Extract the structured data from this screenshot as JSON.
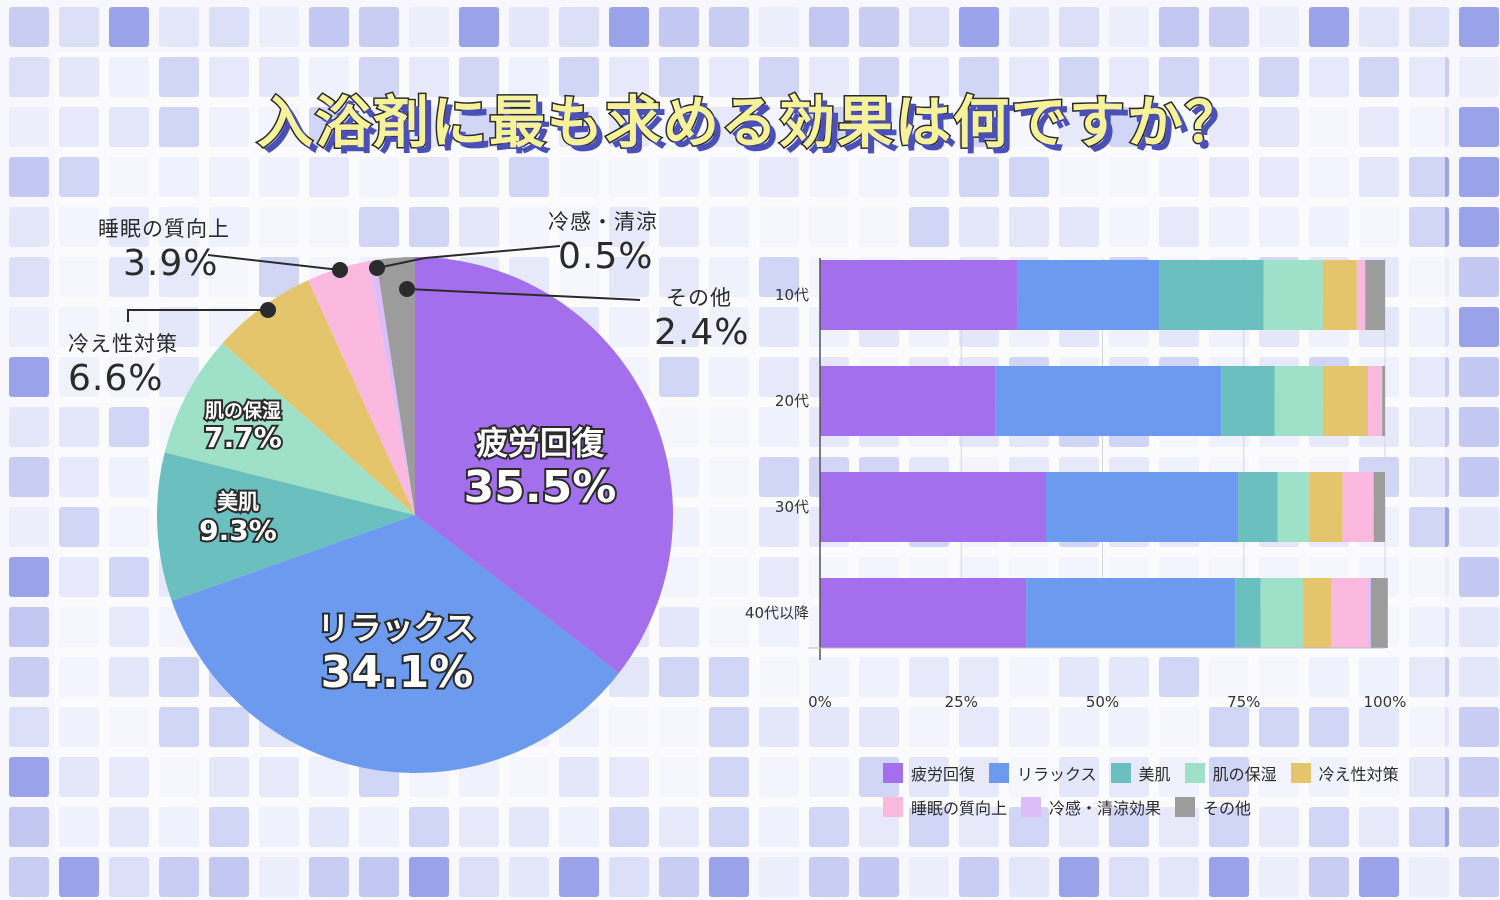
{
  "title": "入浴剤に最も求める効果は何ですか？",
  "colors": {
    "fatigue": "#a36fed",
    "relax": "#6b9aee",
    "beauty": "#6cbfbf",
    "moisture": "#9ee0c8",
    "coldness": "#e4c56c",
    "sleep": "#fbb9e0",
    "cooling": "#dcbdf7",
    "other": "#9c9c9c"
  },
  "chart_data": [
    {
      "type": "pie",
      "title": "入浴剤に最も求める効果は何ですか？",
      "slices": [
        {
          "key": "fatigue",
          "label": "疲労回復",
          "value": 35.5,
          "value_label": "35.5%"
        },
        {
          "key": "relax",
          "label": "リラックス",
          "value": 34.1,
          "value_label": "34.1%"
        },
        {
          "key": "beauty",
          "label": "美肌",
          "value": 9.3,
          "value_label": "9.3%"
        },
        {
          "key": "moisture",
          "label": "肌の保湿",
          "value": 7.7,
          "value_label": "7.7%"
        },
        {
          "key": "coldness",
          "label": "冷え性対策",
          "value": 6.6,
          "value_label": "6.6%"
        },
        {
          "key": "sleep",
          "label": "睡眠の質向上",
          "value": 3.9,
          "value_label": "3.9%"
        },
        {
          "key": "cooling",
          "label": "冷感・清涼",
          "value": 0.5,
          "value_label": "0.5%"
        },
        {
          "key": "other",
          "label": "その他",
          "value": 2.4,
          "value_label": "2.4%"
        }
      ]
    },
    {
      "type": "bar",
      "orientation": "horizontal",
      "stacked": true,
      "categories": [
        "10代",
        "20代",
        "30代",
        "40代以降"
      ],
      "xlim": [
        0,
        100
      ],
      "xticks": [
        "0%",
        "25%",
        "50%",
        "75%",
        "100%"
      ],
      "grid": true,
      "series": [
        {
          "key": "fatigue",
          "name": "疲労回復",
          "values": [
            35,
            31,
            40,
            36.5
          ]
        },
        {
          "key": "relax",
          "name": "リラックス",
          "values": [
            25,
            40,
            34,
            37
          ]
        },
        {
          "key": "beauty",
          "name": "美肌",
          "values": [
            18.5,
            9.5,
            7,
            4.5
          ]
        },
        {
          "key": "moisture",
          "name": "肌の保湿",
          "values": [
            10.5,
            8.5,
            5.5,
            7.5
          ]
        },
        {
          "key": "coldness",
          "name": "冷え性対策",
          "values": [
            6,
            8,
            6,
            5
          ]
        },
        {
          "key": "sleep",
          "name": "睡眠の質向上",
          "values": [
            1.5,
            2.5,
            5.5,
            6.5
          ]
        },
        {
          "key": "cooling",
          "name": "冷感・清涼効果",
          "values": [
            0,
            0,
            0,
            0.5
          ]
        },
        {
          "key": "other",
          "name": "その他",
          "values": [
            3.5,
            0.5,
            2,
            3
          ]
        }
      ]
    }
  ]
}
